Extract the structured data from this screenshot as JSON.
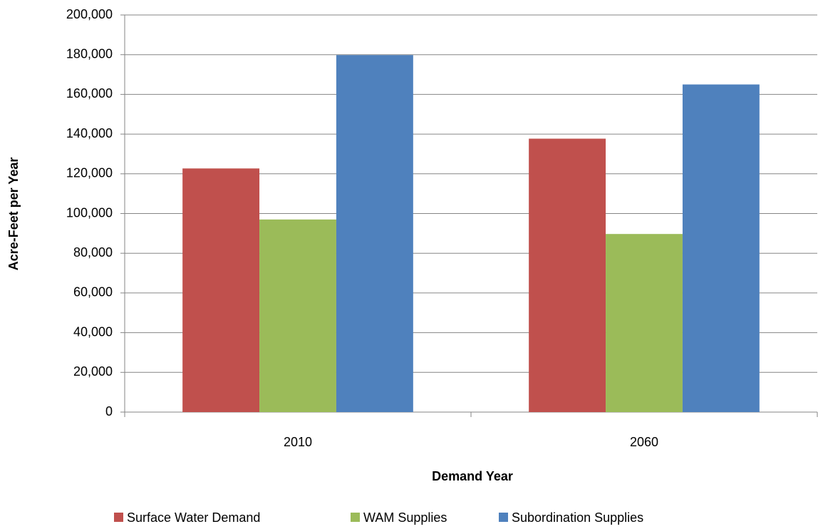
{
  "chart_data": {
    "type": "bar",
    "x_label": "Demand Year",
    "y_label": "Acre-Feet per Year",
    "categories": [
      "2010",
      "2060"
    ],
    "series": [
      {
        "name": "Surface Water Demand",
        "color": "#c0504d",
        "values": [
          122700,
          137700
        ]
      },
      {
        "name": "WAM Supplies",
        "color": "#9bbb59",
        "values": [
          97000,
          89700
        ]
      },
      {
        "name": "Subordination Supplies",
        "color": "#4f81bd",
        "values": [
          179800,
          165000
        ]
      }
    ],
    "ylim": [
      0,
      200000
    ],
    "yticks": [
      0,
      {
        "value": 20000,
        "label": "20,000"
      },
      {
        "value": 40000,
        "label": "40,000"
      },
      {
        "value": 60000,
        "label": "60,000"
      },
      {
        "value": 80000,
        "label": "80,000"
      },
      {
        "value": 100000,
        "label": "100,000"
      },
      {
        "value": 120000,
        "label": "120,000"
      },
      {
        "value": 140000,
        "label": "140,000"
      },
      {
        "value": 160000,
        "label": "160,000"
      },
      {
        "value": 180000,
        "label": "180,000"
      },
      {
        "value": 200000,
        "label": "200,000"
      }
    ],
    "grid": true,
    "legend": "bottom"
  }
}
